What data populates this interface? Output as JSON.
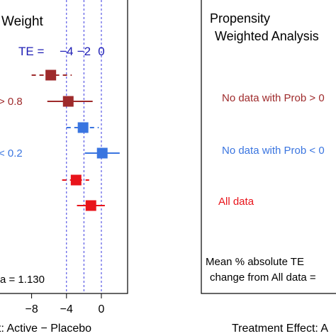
{
  "chart_data": [
    {
      "type": "scatter",
      "subtype": "forest-plot",
      "title": "Weight",
      "te_label": "TE =",
      "te_ticks": [
        "−4",
        "−2",
        "0"
      ],
      "x_reference_lines": [
        -4,
        -2,
        0
      ],
      "xlim": [
        -11.5,
        2.5
      ],
      "xticks": [
        -8,
        -4,
        0
      ],
      "xtick_labels": [
        "−8",
        "−4",
        "0"
      ],
      "xlabel": "t: Active − Placebo",
      "row_labels": [
        {
          "text": "> 0.8",
          "color": "#9e2a2b",
          "row": 1
        },
        {
          "text": "< 0.2",
          "color": "#3a75e0",
          "row": 3
        }
      ],
      "footer": "a = 1.130",
      "points": [
        {
          "row": 0,
          "estimate": -5.8,
          "ci": [
            -8.0,
            -3.4
          ],
          "ci_style": "dashed",
          "color": "#9e2a2b"
        },
        {
          "row": 1,
          "estimate": -3.8,
          "ci": [
            -6.2,
            -1.0
          ],
          "ci_style": "solid",
          "color": "#9e2a2b"
        },
        {
          "row": 2,
          "estimate": -2.1,
          "ci": [
            -4.0,
            -0.3
          ],
          "ci_style": "dashed",
          "color": "#3a75e0"
        },
        {
          "row": 3,
          "estimate": 0.1,
          "ci": [
            -1.9,
            2.1
          ],
          "ci_style": "solid",
          "color": "#3a75e0"
        },
        {
          "row": 4,
          "estimate": -2.9,
          "ci": [
            -4.5,
            -1.4
          ],
          "ci_style": "dashed",
          "color": "#e8141b"
        },
        {
          "row": 5,
          "estimate": -1.2,
          "ci": [
            -2.8,
            0.4
          ],
          "ci_style": "solid",
          "color": "#e8141b"
        }
      ],
      "colors": {
        "te_axis": "#1c1cb4",
        "ref_line": "#3a3ae0"
      }
    },
    {
      "type": "scatter",
      "subtype": "forest-plot-empty",
      "title_line1": "Propensity",
      "title_line2": "Weighted Analysis",
      "annotations": [
        {
          "text": "No data with Prob > 0",
          "color": "#9e2a2b"
        },
        {
          "text": "No data with Prob < 0",
          "color": "#3a75e0"
        },
        {
          "text": "All data",
          "color": "#e8141b"
        }
      ],
      "footer_line1": "Mean % absolute TE",
      "footer_line2": "change from All data =",
      "xlabel": "Treatment Effect: A"
    }
  ]
}
